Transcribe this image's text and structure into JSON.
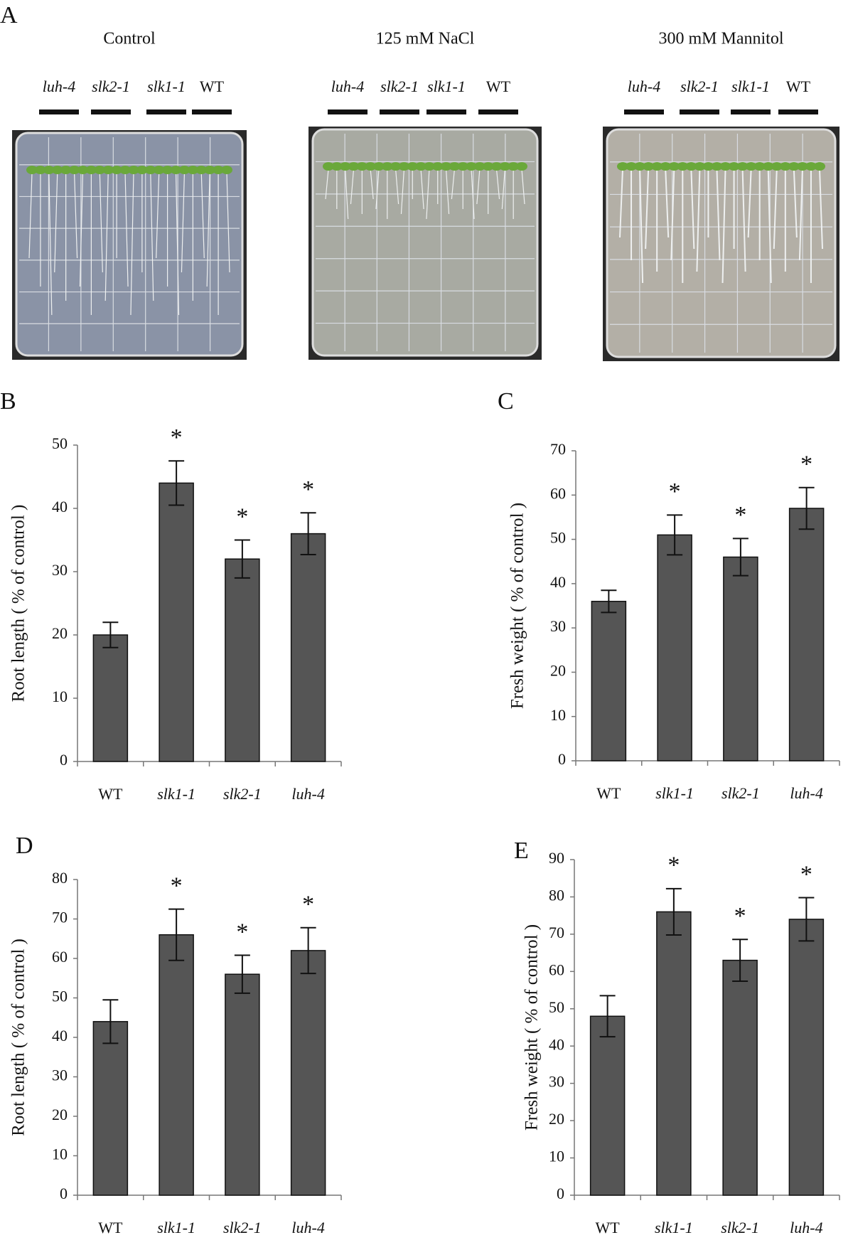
{
  "panel_a": {
    "panel": "A",
    "plates": [
      {
        "title": "Control",
        "labels": [
          "luh-4",
          "slk2-1",
          "slk1-1",
          "WT"
        ]
      },
      {
        "title": "125 mM NaCl",
        "labels": [
          "luh-4",
          "slk2-1",
          "slk1-1",
          "WT"
        ]
      },
      {
        "title": "300 mM Mannitol",
        "labels": [
          "luh-4",
          "slk2-1",
          "slk1-1",
          "WT"
        ]
      }
    ]
  },
  "chart_data": [
    {
      "type": "bar",
      "panel": "B",
      "y_label": "Root length ( % of control )",
      "categories": [
        "WT",
        "slk1-1",
        "slk2-1",
        "luh-4"
      ],
      "values": [
        20,
        44,
        32,
        36
      ],
      "errors": [
        2,
        3.5,
        3,
        3.3
      ],
      "annotations": [
        null,
        "*",
        "*",
        "*"
      ],
      "color": "#555555",
      "ylim": [
        0,
        50
      ],
      "yticks": [
        0,
        10,
        20,
        30,
        40,
        50
      ]
    },
    {
      "type": "bar",
      "panel": "C",
      "y_label": "Fresh weight ( % of control )",
      "categories": [
        "WT",
        "slk1-1",
        "slk2-1",
        "luh-4"
      ],
      "values": [
        36,
        51,
        46,
        57
      ],
      "errors": [
        2.5,
        4.5,
        4.2,
        4.7
      ],
      "annotations": [
        null,
        "*",
        "*",
        "*"
      ],
      "color": "#555555",
      "ylim": [
        0,
        70
      ],
      "yticks": [
        0,
        10,
        20,
        30,
        40,
        50,
        60,
        70
      ]
    },
    {
      "type": "bar",
      "panel": "D",
      "y_label": "Root length ( % of control )",
      "categories": [
        "WT",
        "slk1-1",
        "slk2-1",
        "luh-4"
      ],
      "values": [
        44,
        66,
        56,
        62
      ],
      "errors": [
        5.5,
        6.5,
        4.8,
        5.8
      ],
      "annotations": [
        null,
        "*",
        "*",
        "*"
      ],
      "color": "#555555",
      "ylim": [
        0,
        80
      ],
      "yticks": [
        0,
        10,
        20,
        30,
        40,
        50,
        60,
        70,
        80
      ]
    },
    {
      "type": "bar",
      "panel": "E",
      "y_label": "Fresh weight ( % of control )",
      "categories": [
        "WT",
        "slk1-1",
        "slk2-1",
        "luh-4"
      ],
      "values": [
        48,
        76,
        63,
        74
      ],
      "errors": [
        5.5,
        6.2,
        5.6,
        5.8
      ],
      "annotations": [
        null,
        "*",
        "*",
        "*"
      ],
      "color": "#555555",
      "ylim": [
        0,
        90
      ],
      "yticks": [
        0,
        10,
        20,
        30,
        40,
        50,
        60,
        70,
        80,
        90
      ]
    }
  ]
}
